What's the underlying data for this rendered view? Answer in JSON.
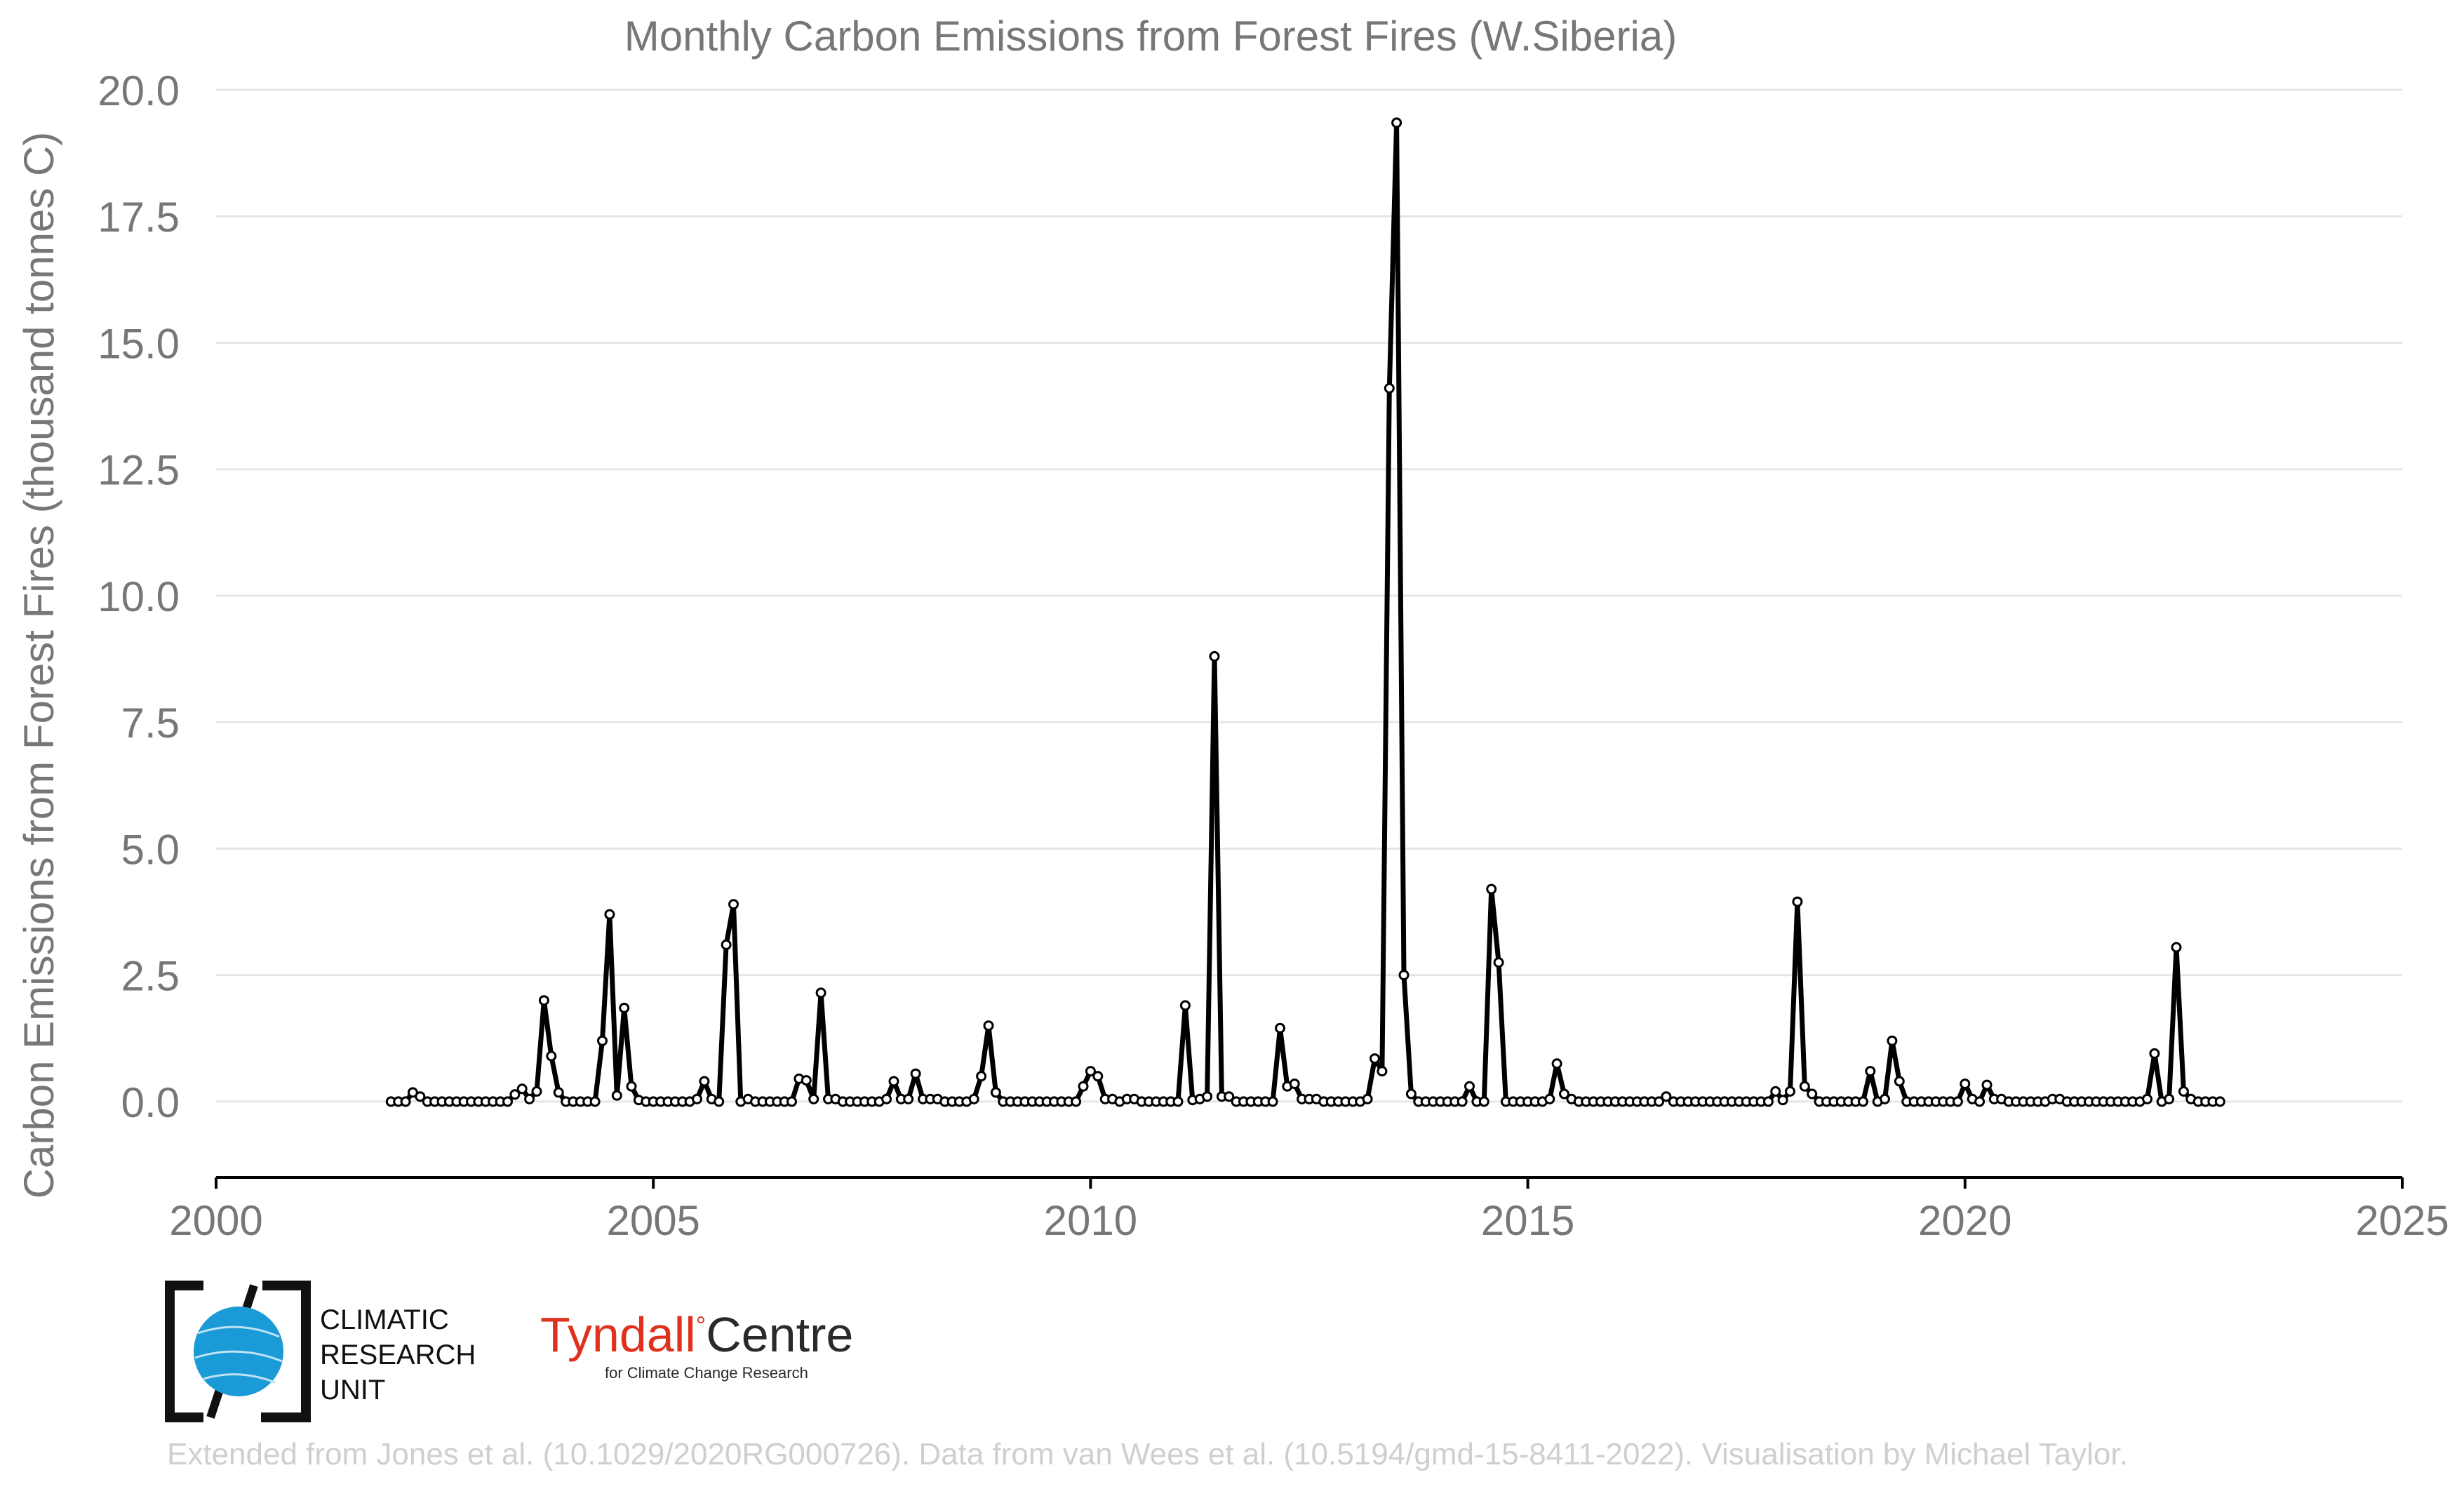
{
  "chart_data": {
    "type": "line",
    "title": "Monthly Carbon Emissions from Forest Fires (W.Siberia)",
    "xlabel": "",
    "ylabel": "Carbon Emissions from Forest Fires (thousand tonnes C)",
    "xlim": [
      2000,
      2025
    ],
    "ylim": [
      -1.5,
      20.0
    ],
    "x_ticks": [
      2000,
      2005,
      2010,
      2015,
      2020,
      2025
    ],
    "y_ticks": [
      0.0,
      2.5,
      5.0,
      7.5,
      10.0,
      12.5,
      15.0,
      17.5,
      20.0
    ],
    "y_tick_labels": [
      "0.0",
      "2.5",
      "5.0",
      "7.5",
      "10.0",
      "12.5",
      "15.0",
      "17.5",
      "20.0"
    ],
    "grid": "horizontal",
    "legend": "none",
    "series_color": "#000000",
    "x_start": "2002-01",
    "x_step": "1 month",
    "series": [
      {
        "values": [
          0.0,
          0.0,
          0.0,
          0.18,
          0.1,
          0.0,
          0.0,
          0.0,
          0.0,
          0.0,
          0.0,
          0.0,
          0.0,
          0.0,
          0.0,
          0.0,
          0.0,
          0.14,
          0.25,
          0.05,
          0.2,
          2.0,
          0.9,
          0.18,
          0.0,
          0.0,
          0.0,
          0.0,
          0.0,
          1.2,
          3.7,
          0.12,
          1.85,
          0.3,
          0.03,
          0.0,
          0.0,
          0.0,
          0.0,
          0.0,
          0.0,
          0.0,
          0.05,
          0.4,
          0.05,
          0.0,
          3.1,
          3.9,
          0.0,
          0.05,
          0.0,
          0.0,
          0.0,
          0.0,
          0.0,
          0.0,
          0.45,
          0.42,
          0.05,
          2.15,
          0.05,
          0.05,
          0.0,
          0.0,
          0.0,
          0.0,
          0.0,
          0.0,
          0.05,
          0.4,
          0.05,
          0.05,
          0.55,
          0.05,
          0.05,
          0.05,
          0.0,
          0.0,
          0.0,
          0.0,
          0.05,
          0.5,
          1.5,
          0.18,
          0.0,
          0.0,
          0.0,
          0.0,
          0.0,
          0.0,
          0.0,
          0.0,
          0.0,
          0.0,
          0.0,
          0.3,
          0.6,
          0.5,
          0.05,
          0.05,
          0.0,
          0.05,
          0.05,
          0.0,
          0.0,
          0.0,
          0.0,
          0.0,
          0.0,
          1.9,
          0.03,
          0.05,
          0.1,
          8.8,
          0.1,
          0.1,
          0.0,
          0.0,
          0.0,
          0.0,
          0.0,
          0.0,
          1.45,
          0.3,
          0.35,
          0.05,
          0.05,
          0.05,
          0.0,
          0.0,
          0.0,
          0.0,
          0.0,
          0.0,
          0.05,
          0.85,
          0.6,
          14.1,
          19.35,
          2.5,
          0.15,
          0.0,
          0.0,
          0.0,
          0.0,
          0.0,
          0.0,
          0.0,
          0.3,
          0.0,
          0.0,
          4.2,
          2.75,
          0.0,
          0.0,
          0.0,
          0.0,
          0.0,
          0.0,
          0.05,
          0.75,
          0.15,
          0.05,
          0.0,
          0.0,
          0.0,
          0.0,
          0.0,
          0.0,
          0.0,
          0.0,
          0.0,
          0.0,
          0.0,
          0.0,
          0.1,
          0.0,
          0.0,
          0.0,
          0.0,
          0.0,
          0.0,
          0.0,
          0.0,
          0.0,
          0.0,
          0.0,
          0.0,
          0.0,
          0.0,
          0.2,
          0.03,
          0.2,
          3.95,
          0.3,
          0.15,
          0.0,
          0.0,
          0.0,
          0.0,
          0.0,
          0.0,
          0.0,
          0.6,
          0.0,
          0.05,
          1.2,
          0.4,
          0.0,
          0.0,
          0.0,
          0.0,
          0.0,
          0.0,
          0.0,
          0.0,
          0.35,
          0.05,
          0.0,
          0.33,
          0.05,
          0.05,
          0.0,
          0.0,
          0.0,
          0.0,
          0.0,
          0.0,
          0.05,
          0.05,
          0.0,
          0.0,
          0.0,
          0.0,
          0.0,
          0.0,
          0.0,
          0.0,
          0.0,
          0.0,
          0.0,
          0.05,
          0.95,
          0.0,
          0.05,
          3.05,
          0.2,
          0.05,
          0.0,
          0.0,
          0.0,
          0.0
        ]
      }
    ]
  },
  "logos": {
    "cru_lines": [
      "CLIMATIC",
      "RESEARCH",
      "UNIT"
    ],
    "tyndall_part1": "Tyndall",
    "tyndall_degree": "°",
    "tyndall_part2": "Centre",
    "tyndall_sub": "for Climate Change Research",
    "cru_blue": "#1a9ad6",
    "tyndall_red": "#e0301e"
  },
  "footer": {
    "credit": "Extended from Jones et al. (10.1029/2020RG000726). Data from van Wees et al. (10.5194/gmd-15-8411-2022). Visualisation by Michael Taylor."
  }
}
